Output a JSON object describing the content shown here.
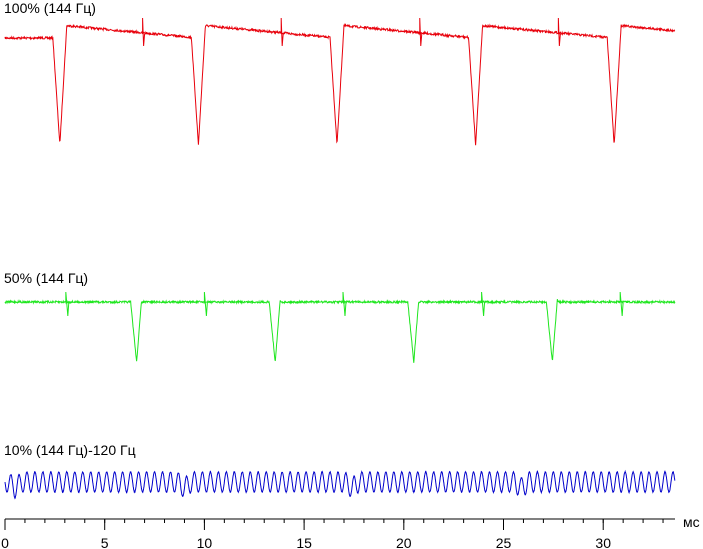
{
  "chart_data": {
    "type": "line",
    "title": "",
    "xlabel": "мс",
    "ylabel": "",
    "xlim": [
      0,
      33.6
    ],
    "x_ticks": [
      0,
      5,
      10,
      15,
      20,
      25,
      30
    ],
    "x_tick_labels": [
      "0",
      "5",
      "10",
      "15",
      "20",
      "25",
      "30"
    ],
    "minor_tick_step": 1,
    "grid": false,
    "legend": "none",
    "series": [
      {
        "name": "100% (144 Гц)",
        "color": "#e8000b",
        "period_ms": 6.94,
        "pulse_times_ms": [
          2.75,
          9.7,
          16.65,
          23.6,
          30.55
        ],
        "minor_glitch_times_ms": [
          6.9,
          13.85,
          20.8,
          27.75
        ],
        "level": "high",
        "dip_depth": "deep"
      },
      {
        "name": "50% (144 Гц)",
        "color": "#1ee61e",
        "period_ms": 6.94,
        "pulse_times_ms": [
          6.6,
          13.55,
          20.5,
          27.45
        ],
        "minor_glitch_times_ms": [
          3.05,
          10.0,
          16.95,
          23.9,
          30.85
        ],
        "level": "high",
        "dip_depth": "medium"
      },
      {
        "name": "10% (144 Гц)-120 Гц",
        "color": "#0000cc",
        "oscillation": "sine",
        "ripple_frequency_khz": 2.5,
        "pulse_times_ms": [
          0.5,
          9.0,
          17.4,
          25.9
        ],
        "level": "low",
        "dip_depth": "shallow"
      }
    ]
  }
}
